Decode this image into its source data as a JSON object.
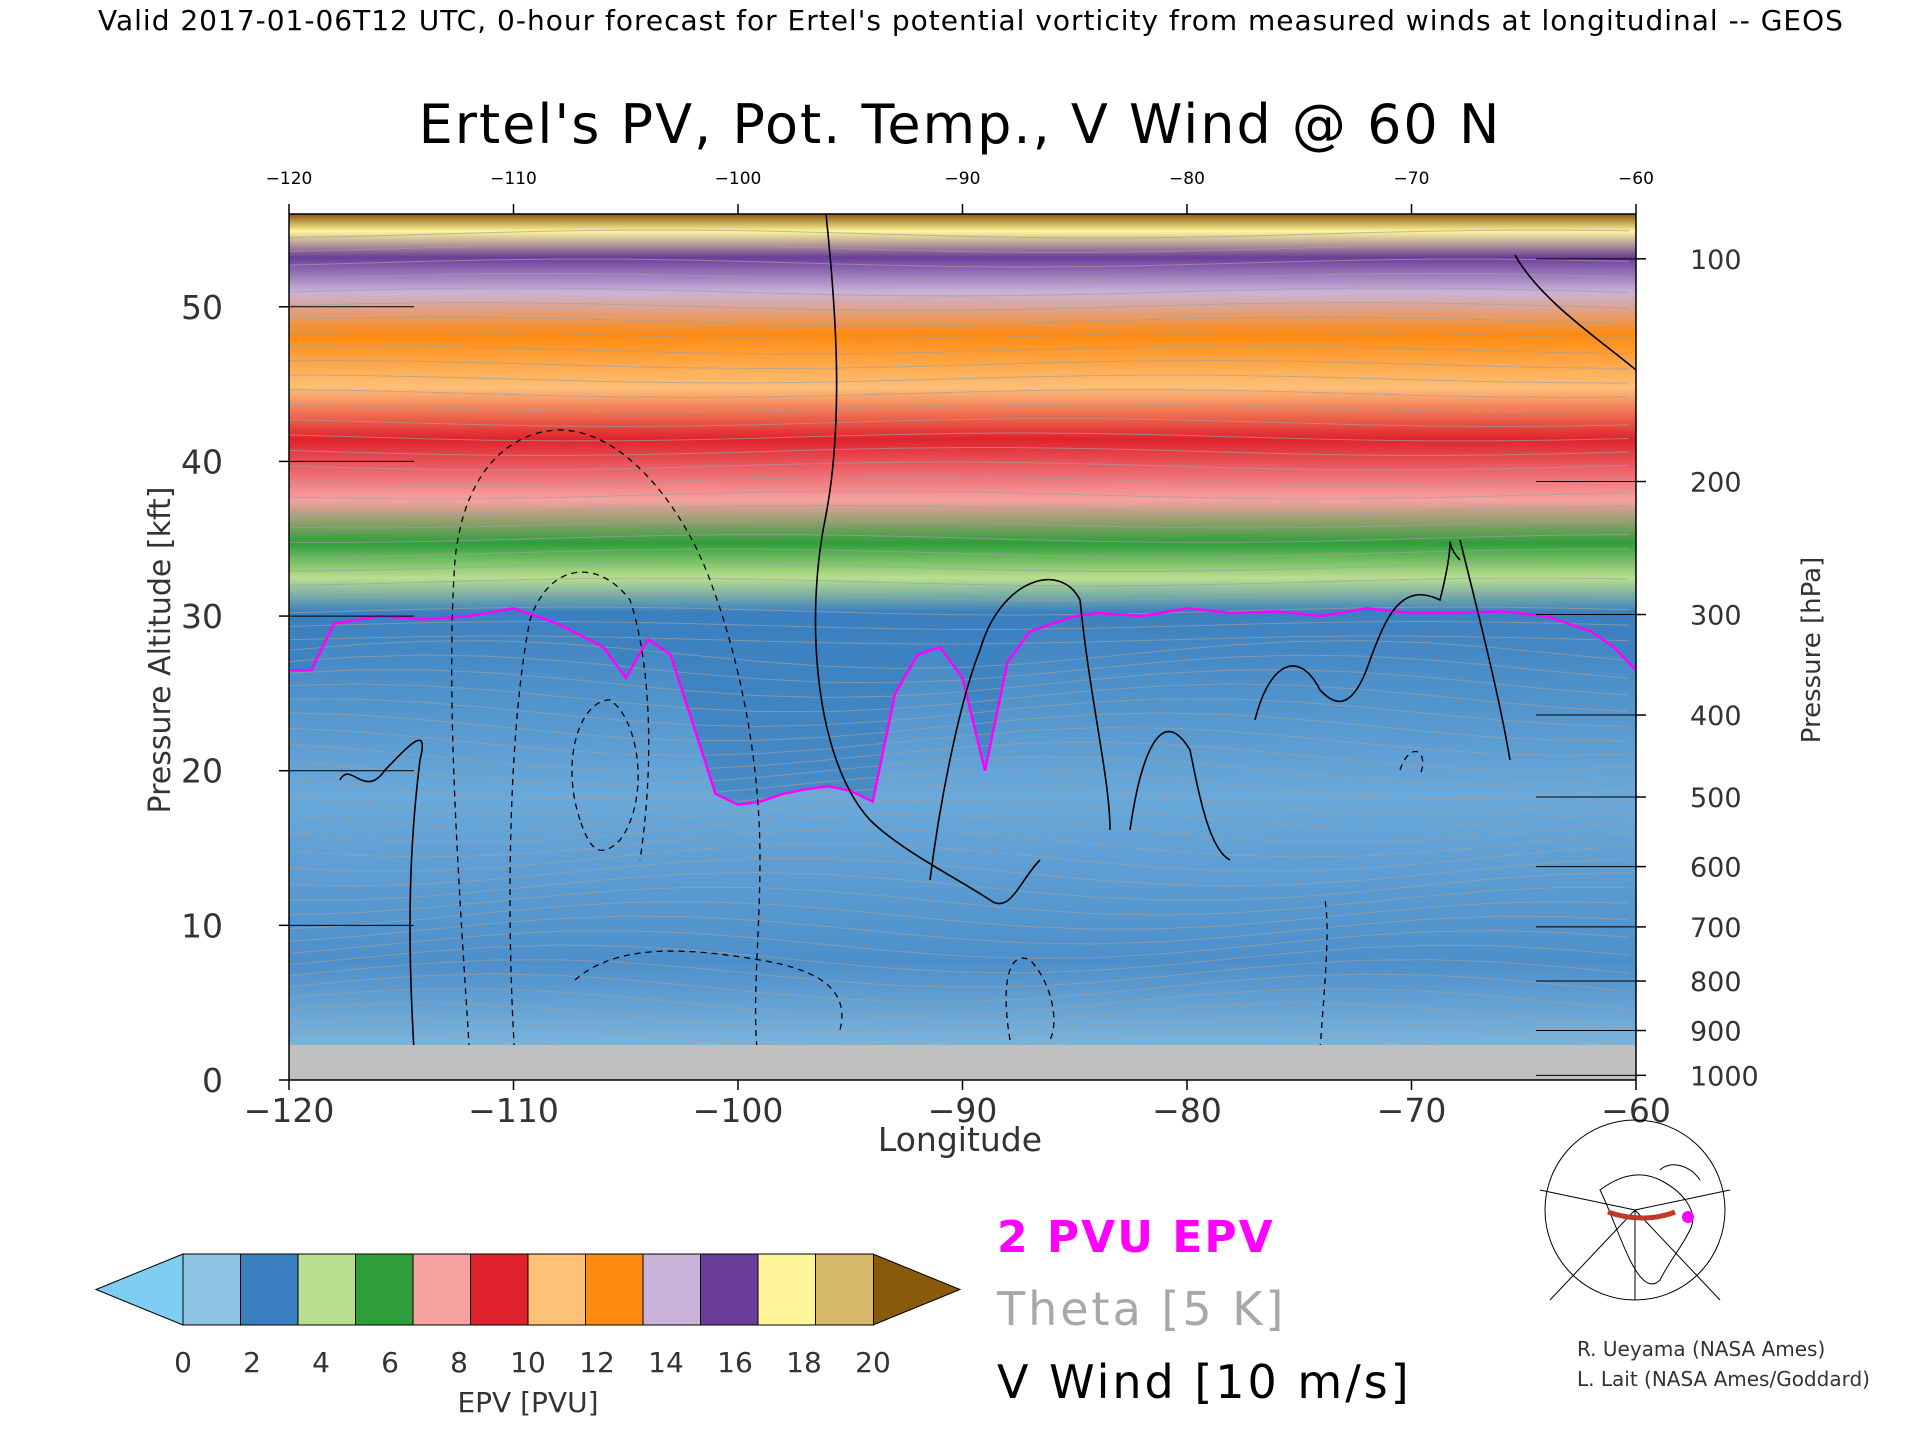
{
  "header": {
    "valid_line": "Valid 2017-01-06T12 UTC, 0-hour forecast for Ertel's potential vorticity from measured winds at longitudinal -- GEOS"
  },
  "credits": [
    "R. Ueyama (NASA Ames)",
    "L. Lait (NASA Ames/Goddard)"
  ],
  "legend": {
    "pvu": "2 PVU EPV",
    "theta": "Theta [5 K]",
    "vwind": "V Wind [10 m/s]"
  },
  "colors": {
    "pvu_line": "#ff00ff",
    "theta_line": "#a0a0a0",
    "vwind_line": "#000000",
    "ground": "#c0c0c0"
  },
  "chart_data": {
    "type": "heatmap",
    "title": "Ertel's PV, Pot. Temp., V Wind @ 60 N",
    "xlabel": "Longitude",
    "ylabel_left": "Pressure Altitude [kft]",
    "ylabel_right": "Pressure [hPa]",
    "xlim": [
      -120,
      -60
    ],
    "ylim": [
      0,
      56
    ],
    "x_ticks": [
      -120,
      -110,
      -100,
      -90,
      -80,
      -70,
      -60
    ],
    "y_ticks": [
      0,
      10,
      20,
      30,
      40,
      50
    ],
    "pressure_ticks": [
      {
        "label": "100",
        "kft": 53.1
      },
      {
        "label": "200",
        "kft": 38.7
      },
      {
        "label": "300",
        "kft": 30.1
      },
      {
        "label": "400",
        "kft": 23.6
      },
      {
        "label": "500",
        "kft": 18.3
      },
      {
        "label": "600",
        "kft": 13.8
      },
      {
        "label": "700",
        "kft": 9.9
      },
      {
        "label": "800",
        "kft": 6.4
      },
      {
        "label": "900",
        "kft": 3.2
      },
      {
        "label": "1000",
        "kft": 0.3
      }
    ],
    "colorbar": {
      "label": "EPV [PVU]",
      "ticks": [
        0,
        2,
        4,
        6,
        8,
        10,
        12,
        14,
        16,
        18,
        20
      ],
      "under_color": "#7fcdf3",
      "over_color": "#8a5a0c",
      "segment_colors": [
        "#8ec3e3",
        "#3a7fbf",
        "#b9df8e",
        "#2f9e3a",
        "#f7a1a1",
        "#e0222c",
        "#ffc078",
        "#ff8a10",
        "#c9b3d9",
        "#6a3d9a",
        "#fff59a",
        "#d7b76a"
      ]
    },
    "tropopause_2pvu_kft": {
      "lon": [
        -120,
        -119,
        -118,
        -116,
        -114,
        -112,
        -110,
        -108,
        -106,
        -105,
        -104,
        -103,
        -102,
        -101,
        -100,
        -99,
        -98,
        -97,
        -96,
        -95,
        -94,
        -93,
        -92,
        -91,
        -90,
        -89,
        -88,
        -87,
        -86,
        -85,
        -84,
        -82,
        -80,
        -78,
        -76,
        -74,
        -72,
        -70,
        -68,
        -66,
        -64,
        -62,
        -61,
        -60
      ],
      "kft": [
        26.5,
        26.5,
        29.5,
        30.0,
        29.8,
        30.0,
        30.5,
        29.5,
        28.0,
        26.0,
        28.5,
        27.5,
        23.0,
        18.5,
        17.8,
        18.0,
        18.5,
        18.8,
        19.0,
        18.7,
        18.0,
        25.0,
        27.5,
        28.0,
        26.0,
        20.0,
        27.0,
        29.0,
        29.5,
        30.0,
        30.2,
        30.0,
        30.5,
        30.2,
        30.3,
        30.0,
        30.5,
        30.2,
        30.2,
        30.3,
        30.0,
        29.0,
        28.0,
        26.5
      ]
    }
  }
}
